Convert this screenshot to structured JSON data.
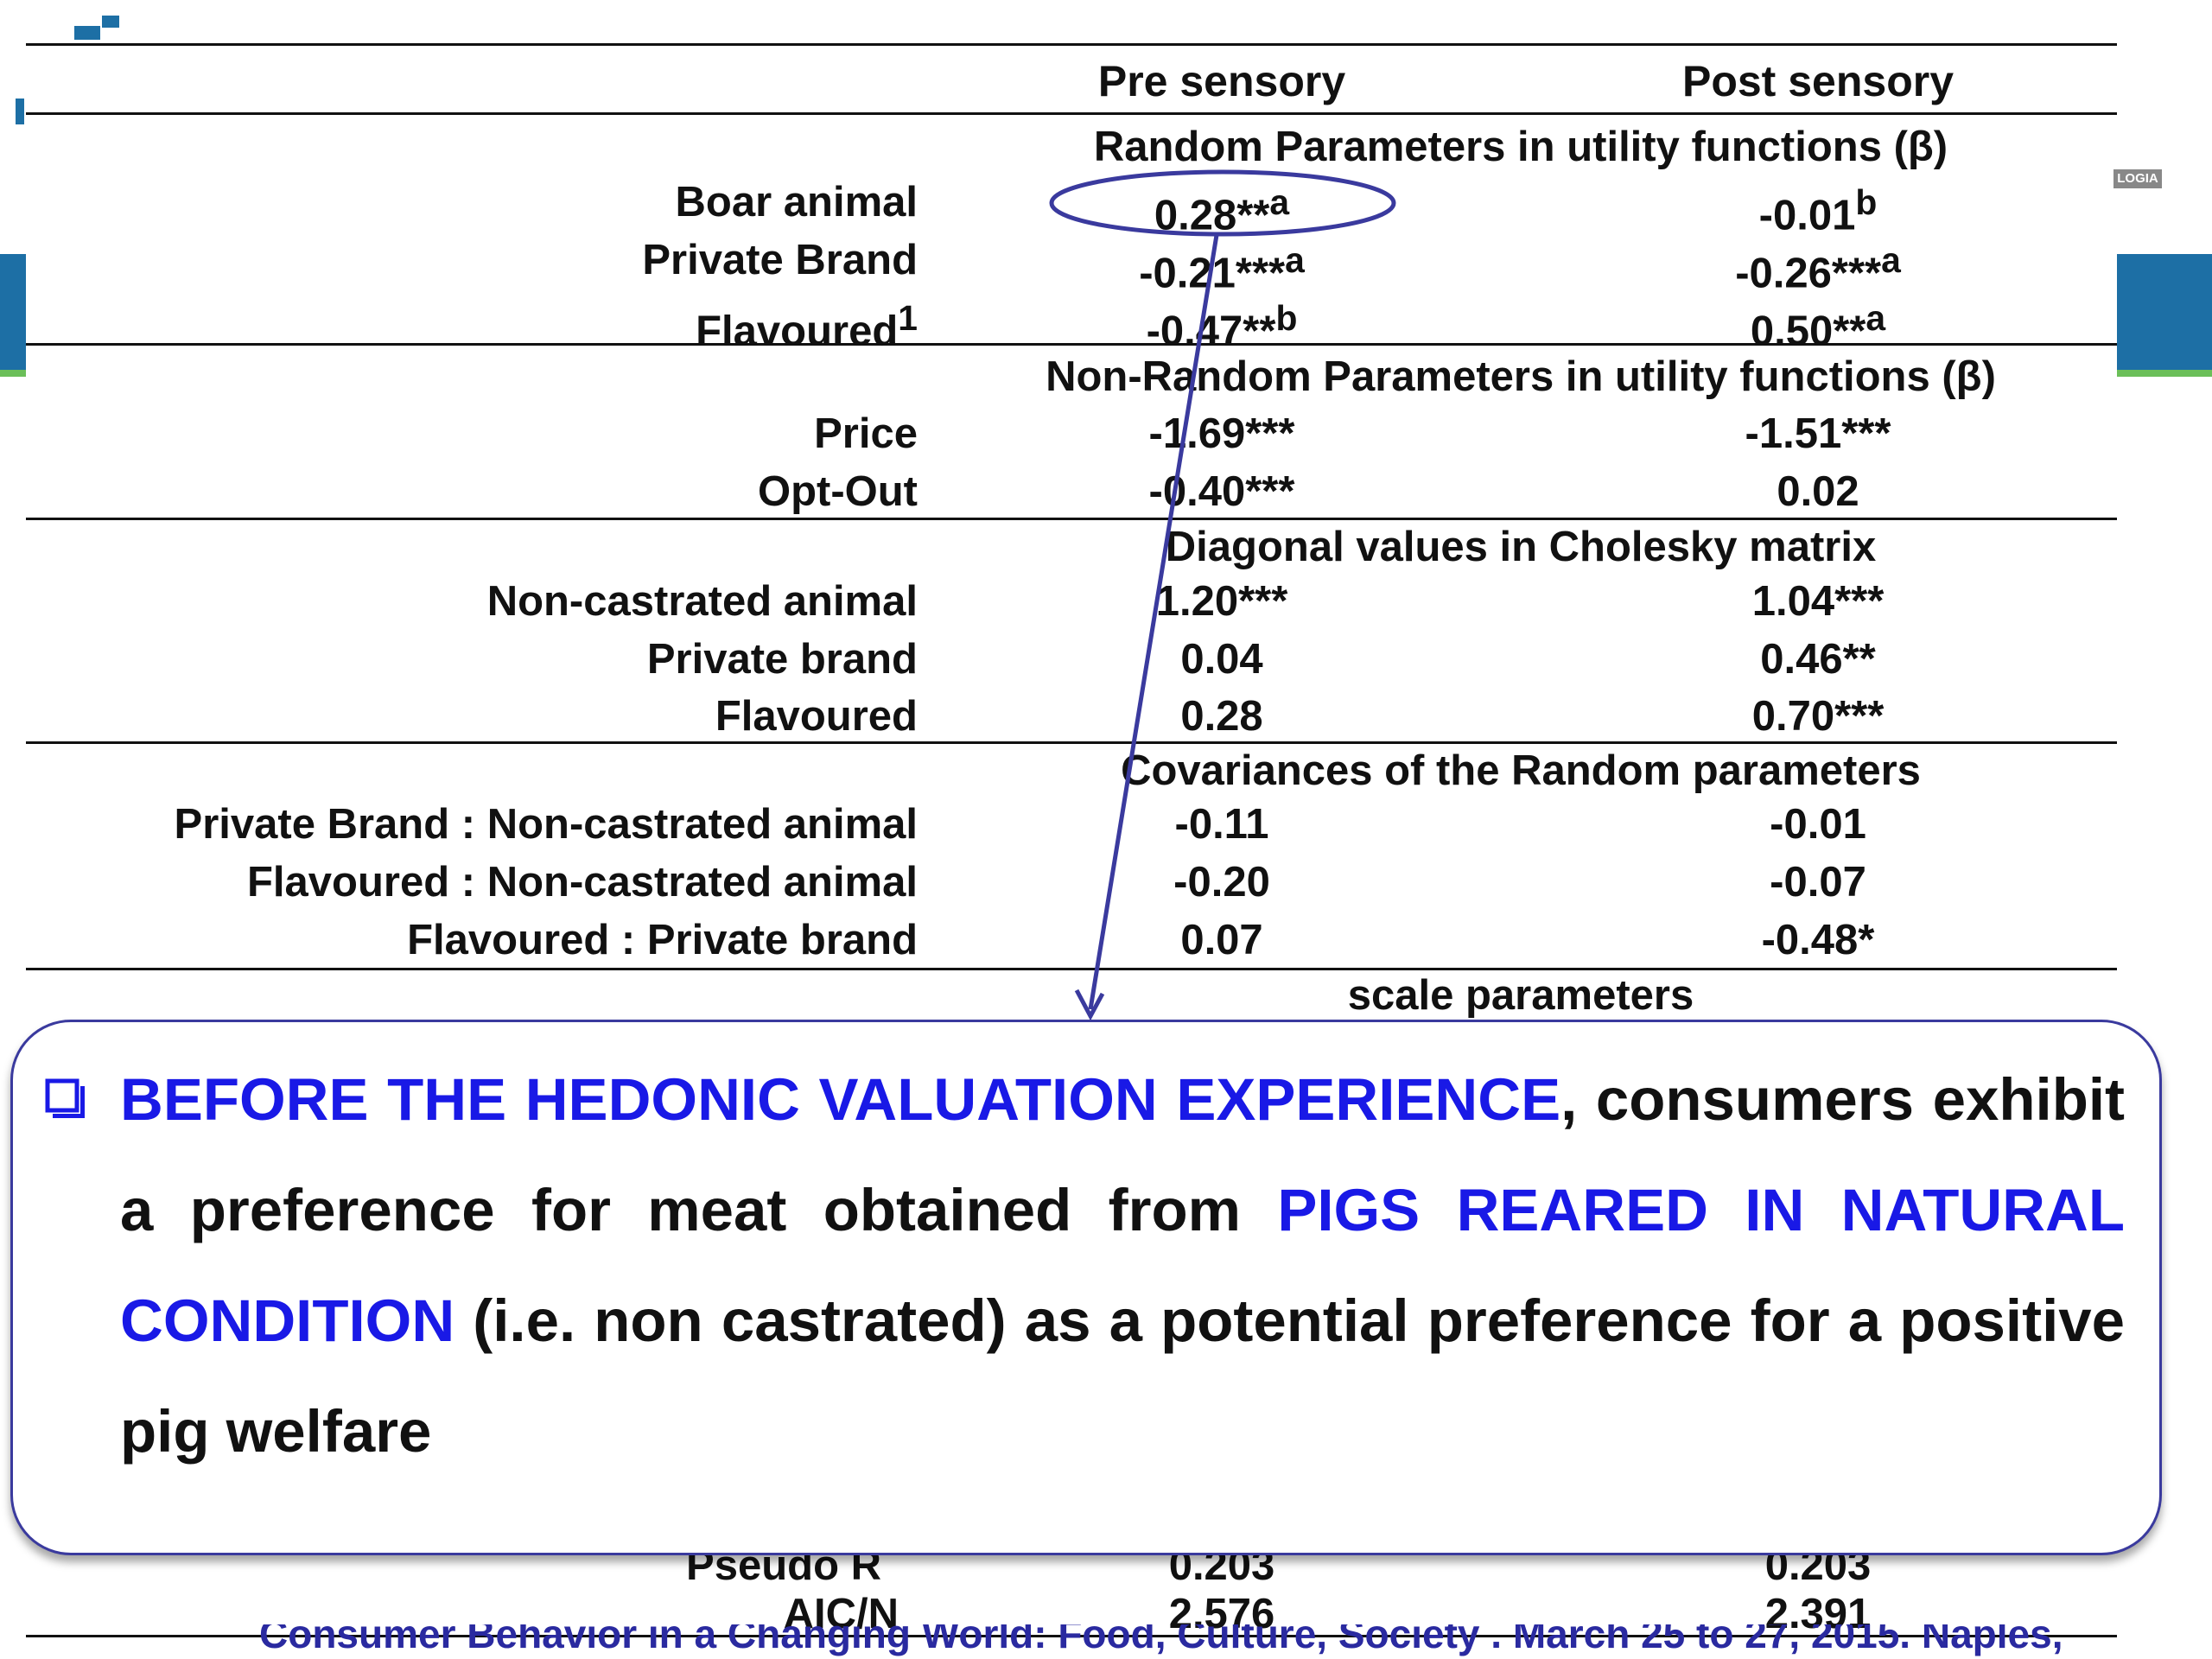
{
  "columns": {
    "pre": "Pre sensory",
    "post": "Post sensory"
  },
  "sections": [
    {
      "title": "Random Parameters in utility functions (β)",
      "rows": [
        {
          "label": "Boar animal",
          "pre": "0.28**",
          "pre_sup": "a",
          "post": "-0.01",
          "post_sup": "b"
        },
        {
          "label": "Private Brand",
          "pre": "-0.21***",
          "pre_sup": "a",
          "post": "-0.26***",
          "post_sup": "a"
        },
        {
          "label": "Flavoured",
          "label_sup": "1",
          "pre": "-0.47**",
          "pre_sup": "b",
          "post": "0.50**",
          "post_sup": "a"
        }
      ]
    },
    {
      "title": "Non-Random Parameters in utility functions (β)",
      "rows": [
        {
          "label": "Price",
          "pre": "-1.69***",
          "post": "-1.51***"
        },
        {
          "label": "Opt-Out",
          "pre": "-0.40***",
          "post": "0.02"
        }
      ]
    },
    {
      "title": "Diagonal values in Cholesky matrix",
      "rows": [
        {
          "label": "Non-castrated animal",
          "pre": "1.20***",
          "post": "1.04***"
        },
        {
          "label": "Private brand",
          "pre": "0.04",
          "post": "0.46**"
        },
        {
          "label": "Flavoured",
          "pre": "0.28",
          "post": "0.70***"
        }
      ]
    },
    {
      "title": "Covariances of the Random parameters",
      "rows": [
        {
          "label": "Private Brand : Non-castrated animal",
          "pre": "-0.11",
          "post": "-0.01"
        },
        {
          "label": "Flavoured : Non-castrated animal",
          "pre": "-0.20",
          "post": "-0.07"
        },
        {
          "label": "Flavoured : Private brand",
          "pre": "0.07",
          "post": "-0.48*"
        }
      ]
    },
    {
      "title": "scale parameters",
      "rows": []
    }
  ],
  "partial_rows": {
    "pseudo_label": "Pseudo R",
    "pseudo_pre": "0.203",
    "pseudo_post": "0.203"
  },
  "aic": {
    "label": "AIC/N",
    "pre": "2.576",
    "post": "2.391"
  },
  "callout": {
    "bullet_icon": "square-bullet-icon",
    "seg1": "BEFORE THE HEDONIC VALUATION EXPERIENCE",
    "seg2": ", consumers exhibit a preference for meat obtained from ",
    "seg3": "PIGS REARED IN NATURAL CONDITION",
    "seg4": " (i.e. non castrated) as a potential preference for a positive pig welfare"
  },
  "footer": "Consumer Behavior in a Changing World: Food, Culture, Society . March 25 to 27, 2015. Naples, Italy",
  "logo_text": "LOGIA",
  "colors": {
    "accent_blue": "#1919e6",
    "ellipse": "#3a3a9e",
    "side_bar": "#1d6fa5",
    "green_line": "#6bbf59"
  }
}
